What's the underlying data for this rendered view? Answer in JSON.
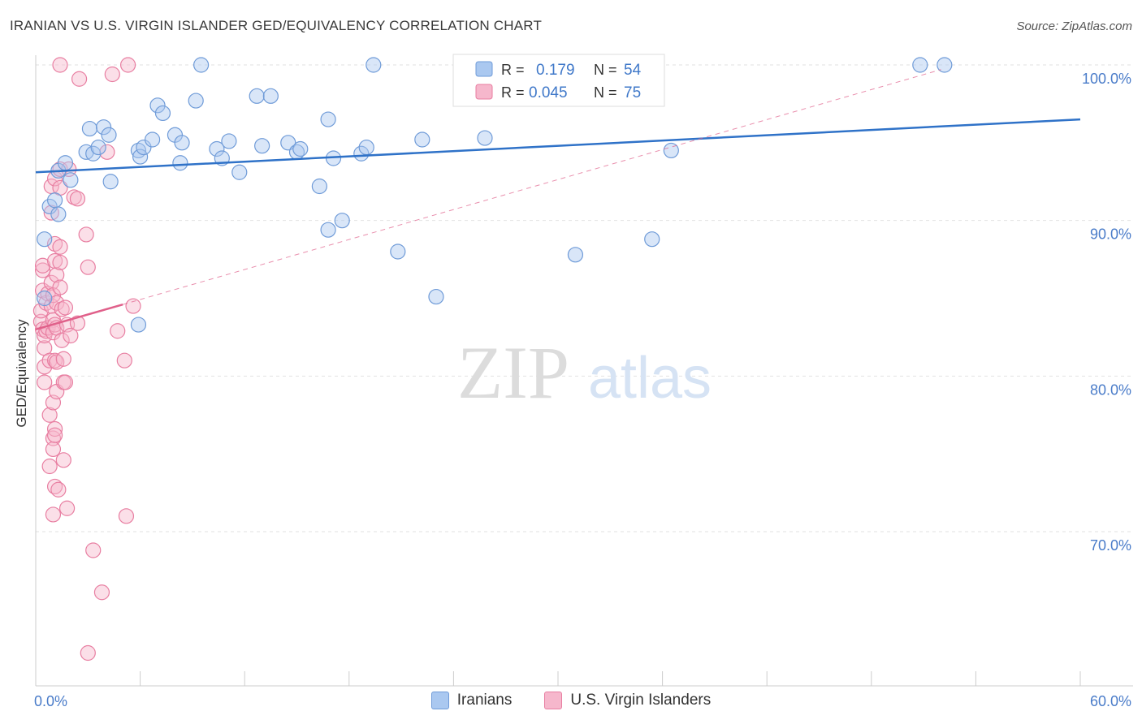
{
  "header": {
    "title": "IRANIAN VS U.S. VIRGIN ISLANDER GED/EQUIVALENCY CORRELATION CHART",
    "source": "Source: ZipAtlas.com"
  },
  "watermark": {
    "zip": "ZIP",
    "atlas": "atlas"
  },
  "colors": {
    "blue_fill": "#aac8f0",
    "blue_stroke": "#6f9bd8",
    "blue_line": "#2f72c8",
    "pink_fill": "#f6b7cc",
    "pink_stroke": "#e87ea1",
    "pink_line": "#e0608a",
    "axis_text": "#4a7cc9",
    "grid": "#e2e2e2"
  },
  "legend_top": {
    "rows": [
      {
        "r_label": "R =",
        "r_value": "0.179",
        "n_label": "N =",
        "n_value": "54",
        "series": "blue"
      },
      {
        "r_label": "R =",
        "r_value": "0.045",
        "n_label": "N =",
        "n_value": "75",
        "series": "pink"
      }
    ]
  },
  "legend_bottom": [
    {
      "label": "Iranians",
      "series": "blue"
    },
    {
      "label": "U.S. Virgin Islanders",
      "series": "pink"
    }
  ],
  "chart_data": {
    "type": "scatter",
    "title": "IRANIAN VS U.S. VIRGIN ISLANDER GED/EQUIVALENCY CORRELATION CHART",
    "xlabel": "",
    "ylabel": "GED/Equivalency",
    "xlim": [
      0,
      60
    ],
    "ylim": [
      60,
      101.5
    ],
    "x_tick_labels": {
      "left": "0.0%",
      "right": "60.0%"
    },
    "y_ticks": [
      {
        "value": 100,
        "label": "100.0%"
      },
      {
        "value": 90,
        "label": "90.0%"
      },
      {
        "value": 80,
        "label": "80.0%"
      },
      {
        "value": 70,
        "label": "70.0%"
      }
    ],
    "grid": true,
    "series": [
      {
        "name": "Iranians",
        "color": "blue",
        "points": [
          [
            0.5,
            85
          ],
          [
            0.5,
            88.8
          ],
          [
            0.8,
            90.9
          ],
          [
            1.1,
            91.3
          ],
          [
            1.3,
            90.4
          ],
          [
            1.3,
            93.2
          ],
          [
            1.7,
            93.7
          ],
          [
            2.0,
            92.6
          ],
          [
            2.9,
            94.4
          ],
          [
            3.1,
            95.9
          ],
          [
            3.3,
            94.3
          ],
          [
            3.6,
            94.7
          ],
          [
            3.9,
            96.0
          ],
          [
            4.2,
            95.5
          ],
          [
            4.3,
            92.5
          ],
          [
            5.9,
            94.5
          ],
          [
            6.0,
            94.1
          ],
          [
            6.2,
            94.7
          ],
          [
            6.7,
            95.2
          ],
          [
            5.9,
            83.3
          ],
          [
            7.0,
            97.4
          ],
          [
            7.3,
            96.9
          ],
          [
            8.0,
            95.5
          ],
          [
            8.3,
            93.7
          ],
          [
            8.4,
            95.0
          ],
          [
            9.2,
            97.7
          ],
          [
            9.5,
            100
          ],
          [
            10.4,
            94.6
          ],
          [
            10.7,
            94.0
          ],
          [
            11.1,
            95.1
          ],
          [
            11.7,
            93.1
          ],
          [
            12.7,
            98.0
          ],
          [
            13.0,
            94.8
          ],
          [
            13.5,
            98.0
          ],
          [
            14.5,
            95.0
          ],
          [
            15.0,
            94.4
          ],
          [
            15.2,
            94.6
          ],
          [
            16.3,
            92.2
          ],
          [
            16.8,
            96.5
          ],
          [
            17.1,
            94.0
          ],
          [
            17.6,
            90.0
          ],
          [
            16.8,
            89.4
          ],
          [
            18.7,
            94.3
          ],
          [
            19.0,
            94.7
          ],
          [
            19.4,
            100
          ],
          [
            20.8,
            88.0
          ],
          [
            22.2,
            95.2
          ],
          [
            23.0,
            85.1
          ],
          [
            25.8,
            95.3
          ],
          [
            31.0,
            87.8
          ],
          [
            35.4,
            88.8
          ],
          [
            36.5,
            94.5
          ],
          [
            50.8,
            100
          ],
          [
            52.2,
            100
          ]
        ],
        "trend": {
          "x": [
            0,
            60
          ],
          "y": [
            93.1,
            96.5
          ]
        }
      },
      {
        "name": "U.S. Virgin Islanders",
        "color": "pink",
        "points": [
          [
            0.3,
            83.5
          ],
          [
            0.3,
            84.2
          ],
          [
            0.4,
            85.5
          ],
          [
            0.4,
            86.8
          ],
          [
            0.4,
            87.1
          ],
          [
            0.4,
            83.0
          ],
          [
            0.5,
            81.8
          ],
          [
            0.5,
            80.6
          ],
          [
            0.5,
            79.6
          ],
          [
            0.5,
            82.6
          ],
          [
            0.6,
            84.7
          ],
          [
            0.6,
            82.9
          ],
          [
            0.7,
            85.3
          ],
          [
            0.7,
            83.1
          ],
          [
            0.8,
            81.0
          ],
          [
            0.8,
            77.5
          ],
          [
            0.8,
            74.2
          ],
          [
            0.9,
            90.5
          ],
          [
            0.9,
            92.2
          ],
          [
            0.9,
            86.0
          ],
          [
            0.9,
            84.5
          ],
          [
            1.0,
            85.2
          ],
          [
            1.0,
            83.6
          ],
          [
            1.0,
            82.8
          ],
          [
            1.0,
            78.3
          ],
          [
            1.0,
            76.0
          ],
          [
            1.0,
            75.3
          ],
          [
            1.0,
            71.1
          ],
          [
            1.1,
            92.7
          ],
          [
            1.1,
            88.5
          ],
          [
            1.1,
            87.4
          ],
          [
            1.1,
            83.3
          ],
          [
            1.1,
            81.0
          ],
          [
            1.1,
            76.6
          ],
          [
            1.1,
            76.2
          ],
          [
            1.1,
            72.9
          ],
          [
            1.2,
            86.5
          ],
          [
            1.2,
            84.7
          ],
          [
            1.2,
            83.1
          ],
          [
            1.2,
            80.9
          ],
          [
            1.2,
            79.0
          ],
          [
            1.3,
            72.7
          ],
          [
            1.4,
            100
          ],
          [
            1.4,
            93.3
          ],
          [
            1.4,
            92.1
          ],
          [
            1.4,
            88.3
          ],
          [
            1.4,
            87.3
          ],
          [
            1.4,
            85.7
          ],
          [
            1.5,
            84.3
          ],
          [
            1.5,
            82.3
          ],
          [
            1.6,
            81.1
          ],
          [
            1.6,
            79.6
          ],
          [
            1.6,
            74.6
          ],
          [
            1.7,
            84.4
          ],
          [
            1.7,
            79.6
          ],
          [
            1.8,
            83.3
          ],
          [
            1.8,
            71.5
          ],
          [
            1.9,
            93.3
          ],
          [
            2.0,
            82.6
          ],
          [
            2.2,
            91.5
          ],
          [
            2.4,
            91.4
          ],
          [
            2.4,
            83.4
          ],
          [
            2.5,
            99.1
          ],
          [
            2.9,
            89.1
          ],
          [
            3.0,
            87.0
          ],
          [
            3.0,
            62.2
          ],
          [
            3.3,
            68.8
          ],
          [
            3.8,
            66.1
          ],
          [
            4.1,
            94.4
          ],
          [
            4.4,
            99.4
          ],
          [
            4.7,
            82.9
          ],
          [
            5.1,
            81.0
          ],
          [
            5.2,
            71.0
          ],
          [
            5.3,
            100
          ],
          [
            5.6,
            84.5
          ]
        ],
        "trend": {
          "x": [
            0,
            5
          ],
          "y": [
            83.0,
            84.6
          ]
        },
        "trend_dashed": {
          "x": [
            5,
            52
          ],
          "y": [
            84.6,
            99.7
          ]
        }
      }
    ]
  }
}
